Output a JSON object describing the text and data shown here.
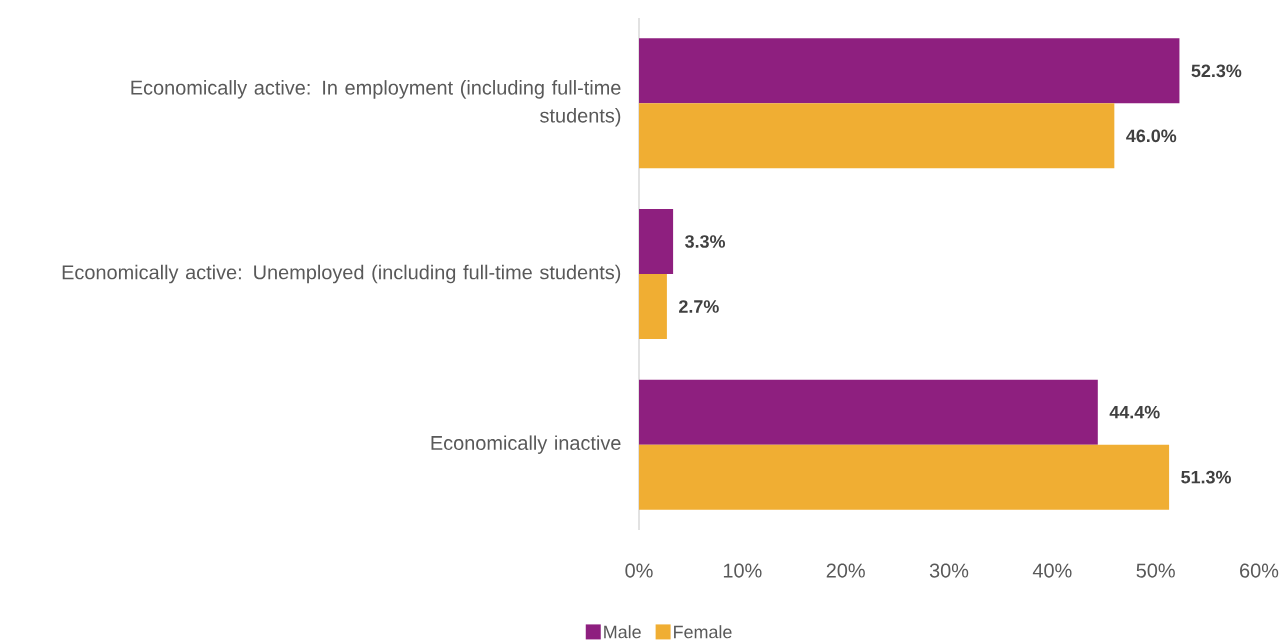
{
  "chart_data": {
    "type": "bar",
    "orientation": "horizontal",
    "categories": [
      "Economically active: In employment (including full-time students)",
      "Economically active: Unemployed (including full-time students)",
      "Economically inactive"
    ],
    "series": [
      {
        "name": "Male",
        "color": "#8e1f7f",
        "values": [
          52.3,
          3.3,
          44.4
        ],
        "value_labels": [
          "52.3%",
          "3.3%",
          "44.4%"
        ]
      },
      {
        "name": "Female",
        "color": "#f0ae33",
        "values": [
          46.0,
          2.7,
          51.3
        ],
        "value_labels": [
          "46.0%",
          "2.7%",
          "51.3%"
        ]
      }
    ],
    "xlim": [
      0,
      60
    ],
    "xticks": [
      {
        "value": 0,
        "label": "0%"
      },
      {
        "value": 10,
        "label": "10%"
      },
      {
        "value": 20,
        "label": "20%"
      },
      {
        "value": 30,
        "label": "30%"
      },
      {
        "value": 40,
        "label": "40%"
      },
      {
        "value": 50,
        "label": "50%"
      },
      {
        "value": 60,
        "label": "60%"
      }
    ],
    "legend": "bottom"
  }
}
